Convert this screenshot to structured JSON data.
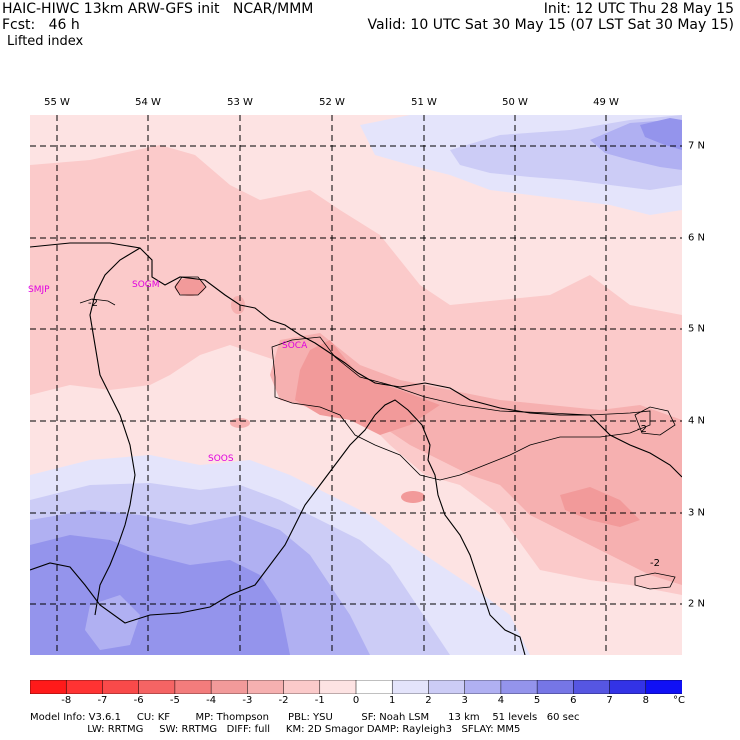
{
  "header": {
    "left_line1": "HAIC-HIWC 13km ARW-GFS init   NCAR/MMM",
    "left_line2": "Fcst:   46 h",
    "field": "Lifted index",
    "right_line1": "Init: 12 UTC Thu 28 May 15",
    "right_line2": "Valid: 10 UTC Sat 30 May 15 (07 LST Sat 30 May 15)"
  },
  "map": {
    "lon_labels": [
      "55 W",
      "54 W",
      "53 W",
      "52 W",
      "51 W",
      "50 W",
      "49 W"
    ],
    "lat_labels": [
      "7 N",
      "6 N",
      "5 N",
      "4 N",
      "3 N",
      "2 N"
    ],
    "stations": [
      "SMJP",
      "SOGM",
      "SOCA",
      "SOOS"
    ],
    "contour_labels": [
      "-2",
      "-2",
      "-2"
    ],
    "colors": {
      "pale_red": "#fde3e3",
      "light_red": "#fbcaca",
      "mid_red": "#f6b0b0",
      "strong_red": "#f29a9a",
      "pale_blue": "#e4e4fb",
      "light_blue": "#ccccf6",
      "mid_blue": "#b0b0f2",
      "strong_blue": "#9494ec"
    }
  },
  "colorbar": {
    "labels": [
      "-8",
      "-7",
      "-6",
      "-5",
      "-4",
      "-3",
      "-2",
      "-1",
      "0",
      "1",
      "2",
      "3",
      "4",
      "5",
      "6",
      "7",
      "8"
    ],
    "unit": "°C",
    "colors": [
      "#ff1a1a",
      "#ff3333",
      "#f94a4a",
      "#f56464",
      "#f37c7c",
      "#f29a9a",
      "#f6b0b0",
      "#fbcaca",
      "#fde3e3",
      "#ffffff",
      "#e4e4fb",
      "#ccccf6",
      "#b0b0f2",
      "#9494ec",
      "#7676e6",
      "#5656e2",
      "#3333e6",
      "#1010f5"
    ]
  },
  "footer": {
    "line1": "Model Info: V3.6.1     CU: KF        MP: Thompson      PBL: YSU         SF: Noah LSM      13 km    51 levels   60 sec",
    "line2": "                  LW: RRTMG     SW: RRTMG   DIFF: full     KM: 2D Smagor DAMP: Rayleigh3   SFLAY: MM5"
  }
}
